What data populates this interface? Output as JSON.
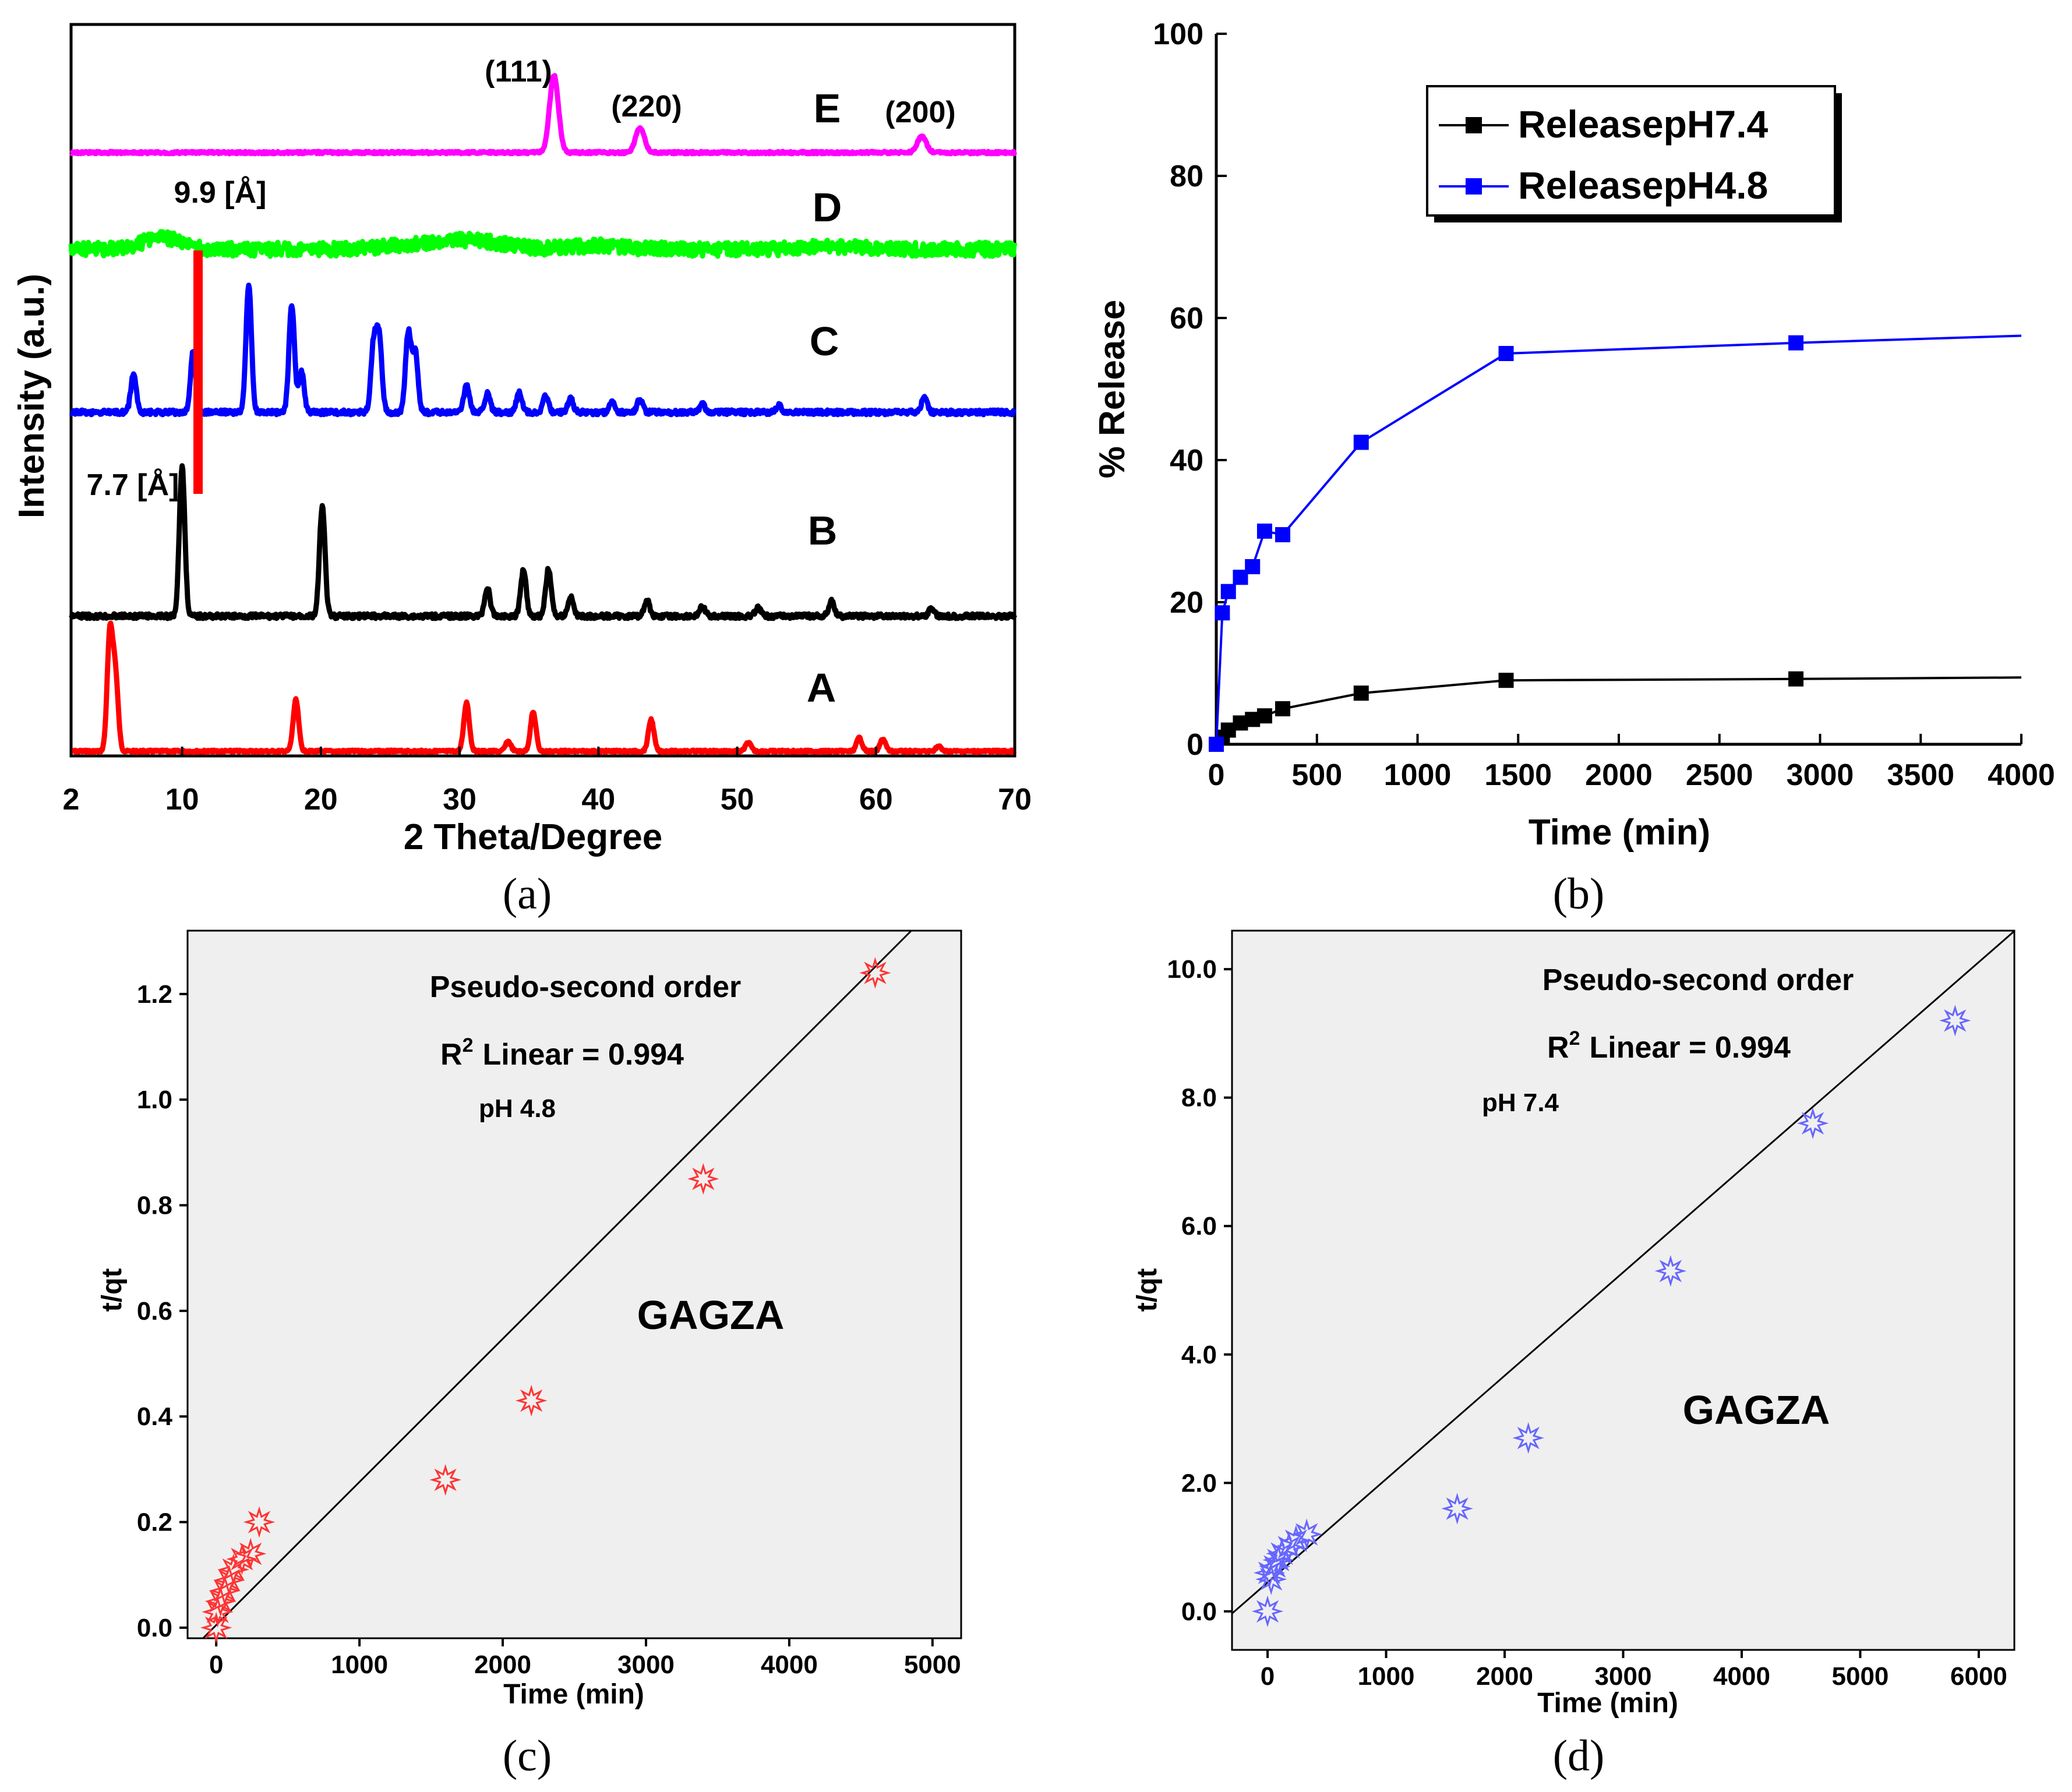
{
  "chart_data": [
    {
      "id": "a",
      "type": "line",
      "caption": "(a)",
      "title": "",
      "xlabel": "2 Theta/Degree",
      "ylabel": "Intensity (a.u.)",
      "xlim": [
        2,
        70
      ],
      "xticks": [
        2,
        10,
        20,
        30,
        40,
        50,
        60,
        70
      ],
      "series": [
        {
          "name": "A",
          "color": "#ff0000",
          "peaks": [
            [
              4.8,
              0.95
            ],
            [
              5.2,
              0.6
            ],
            [
              18.2,
              0.42
            ],
            [
              30.5,
              0.4
            ],
            [
              33.5,
              0.08
            ],
            [
              35.3,
              0.32
            ],
            [
              43.8,
              0.26
            ],
            [
              50.8,
              0.07
            ],
            [
              58.8,
              0.11
            ],
            [
              60.5,
              0.1
            ],
            [
              64.5,
              0.04
            ]
          ]
        },
        {
          "name": "B",
          "color": "#000000",
          "peaks": [
            [
              10.0,
              0.95
            ],
            [
              20.1,
              0.7
            ],
            [
              32.0,
              0.18
            ],
            [
              34.6,
              0.3
            ],
            [
              36.4,
              0.3
            ],
            [
              38.0,
              0.12
            ],
            [
              43.5,
              0.1
            ],
            [
              47.5,
              0.06
            ],
            [
              51.5,
              0.05
            ],
            [
              56.8,
              0.1
            ],
            [
              64.0,
              0.05
            ]
          ]
        },
        {
          "name": "C",
          "color": "#0000ff",
          "peaks": [
            [
              6.5,
              0.28
            ],
            [
              10.8,
              0.45
            ],
            [
              14.8,
              0.95
            ],
            [
              17.9,
              0.8
            ],
            [
              18.6,
              0.3
            ],
            [
              23.8,
              0.5
            ],
            [
              24.2,
              0.55
            ],
            [
              26.3,
              0.6
            ],
            [
              26.8,
              0.45
            ],
            [
              30.5,
              0.2
            ],
            [
              32.0,
              0.14
            ],
            [
              34.3,
              0.15
            ],
            [
              36.2,
              0.12
            ],
            [
              38.0,
              0.1
            ],
            [
              41.0,
              0.08
            ],
            [
              43.0,
              0.1
            ],
            [
              47.5,
              0.06
            ],
            [
              53.0,
              0.05
            ],
            [
              63.5,
              0.12
            ]
          ]
        },
        {
          "name": "D",
          "color": "#00ff00",
          "peaks": [
            [
              8.5,
              0.35
            ],
            [
              31.0,
              0.25
            ],
            [
              26.5,
              0.12
            ],
            [
              40.0,
              0.1
            ],
            [
              57.0,
              0.08
            ]
          ]
        },
        {
          "name": "E",
          "color": "#ff00ff",
          "peaks": [
            [
              36.8,
              0.95
            ],
            [
              43.0,
              0.3
            ],
            [
              63.3,
              0.2
            ]
          ]
        }
      ],
      "annotations": {
        "hkl_111": "(111)",
        "hkl_220": "(220)",
        "hkl_200": "(200)",
        "d_spacing_D": "9.9 [Å]",
        "d_spacing_B": "7.7 [Å]",
        "reference_line_2theta": 10
      }
    },
    {
      "id": "b",
      "type": "line",
      "caption": "(b)",
      "title": "",
      "xlabel": "Time (min)",
      "ylabel": "% Release",
      "xlim": [
        0,
        4000
      ],
      "ylim": [
        0,
        100
      ],
      "xticks": [
        0,
        500,
        1000,
        1500,
        2000,
        2500,
        3000,
        3500,
        4000
      ],
      "yticks": [
        0,
        20,
        40,
        60,
        80,
        100
      ],
      "legend_position": "top-right",
      "series": [
        {
          "name": "ReleasepH7.4",
          "color": "#000000",
          "x": [
            30,
            60,
            120,
            180,
            240,
            330,
            720,
            1440,
            2880,
            4000
          ],
          "y": [
            1,
            2,
            3,
            3.5,
            4,
            5,
            7.2,
            9,
            9.2,
            9.4
          ]
        },
        {
          "name": "ReleasepH4.8",
          "color": "#0000ff",
          "x": [
            0,
            30,
            60,
            120,
            180,
            240,
            330,
            720,
            1440,
            2880,
            4000
          ],
          "y": [
            0,
            18.5,
            21.5,
            23.5,
            25,
            30,
            29.5,
            42.5,
            55,
            56.5,
            57.5
          ]
        }
      ]
    },
    {
      "id": "c",
      "type": "scatter",
      "caption": "(c)",
      "title": "Pseudo-second order",
      "r2_prefix": "R",
      "r2_sup": "2",
      "r2_text": "Linear = 0.994",
      "condition": "pH 4.8",
      "label": "GAGZA",
      "xlabel": "Time (min)",
      "ylabel": "t/qt",
      "xlim": [
        -200,
        5200
      ],
      "ylim": [
        -0.02,
        1.32
      ],
      "xticks": [
        "0",
        "1000",
        "2000",
        "3000",
        "4000",
        "5000"
      ],
      "yticks": [
        "0.0",
        "0.2",
        "0.4",
        "0.6",
        "0.8",
        "1.0",
        "1.2"
      ],
      "marker_color": "#ff3333",
      "points": [
        [
          0,
          0.0
        ],
        [
          10,
          0.03
        ],
        [
          30,
          0.05
        ],
        [
          60,
          0.07
        ],
        [
          90,
          0.09
        ],
        [
          120,
          0.11
        ],
        [
          180,
          0.13
        ],
        [
          240,
          0.14
        ],
        [
          300,
          0.2
        ],
        [
          1600,
          0.28
        ],
        [
          2200,
          0.43
        ],
        [
          3400,
          0.85
        ],
        [
          4600,
          1.24
        ]
      ],
      "fit": {
        "slope": 0.000271,
        "intercept": 0.005
      }
    },
    {
      "id": "d",
      "type": "scatter",
      "caption": "(d)",
      "title": "Pseudo-second order",
      "r2_prefix": "R",
      "r2_sup": "2",
      "r2_text": "Linear = 0.994",
      "condition": "pH 7.4",
      "label": "GAGZA",
      "xlabel": "Time (min)",
      "ylabel": "t/qt",
      "xlim": [
        -300,
        6300
      ],
      "ylim": [
        -0.6,
        10.6
      ],
      "xticks": [
        "0",
        "1000",
        "2000",
        "3000",
        "4000",
        "5000",
        "6000"
      ],
      "yticks": [
        "0.0",
        "2.0",
        "4.0",
        "6.0",
        "8.0",
        "10.0"
      ],
      "marker_color": "#6666ff",
      "points": [
        [
          0,
          0.0
        ],
        [
          15,
          0.6
        ],
        [
          30,
          0.5
        ],
        [
          60,
          0.7
        ],
        [
          90,
          0.8
        ],
        [
          120,
          0.9
        ],
        [
          180,
          1.0
        ],
        [
          240,
          1.1
        ],
        [
          330,
          1.2
        ],
        [
          1600,
          1.6
        ],
        [
          2200,
          2.7
        ],
        [
          3400,
          5.3
        ],
        [
          4600,
          7.6
        ],
        [
          5800,
          9.2
        ]
      ],
      "fit": {
        "slope": 0.00161,
        "intercept": 0.45
      }
    }
  ]
}
